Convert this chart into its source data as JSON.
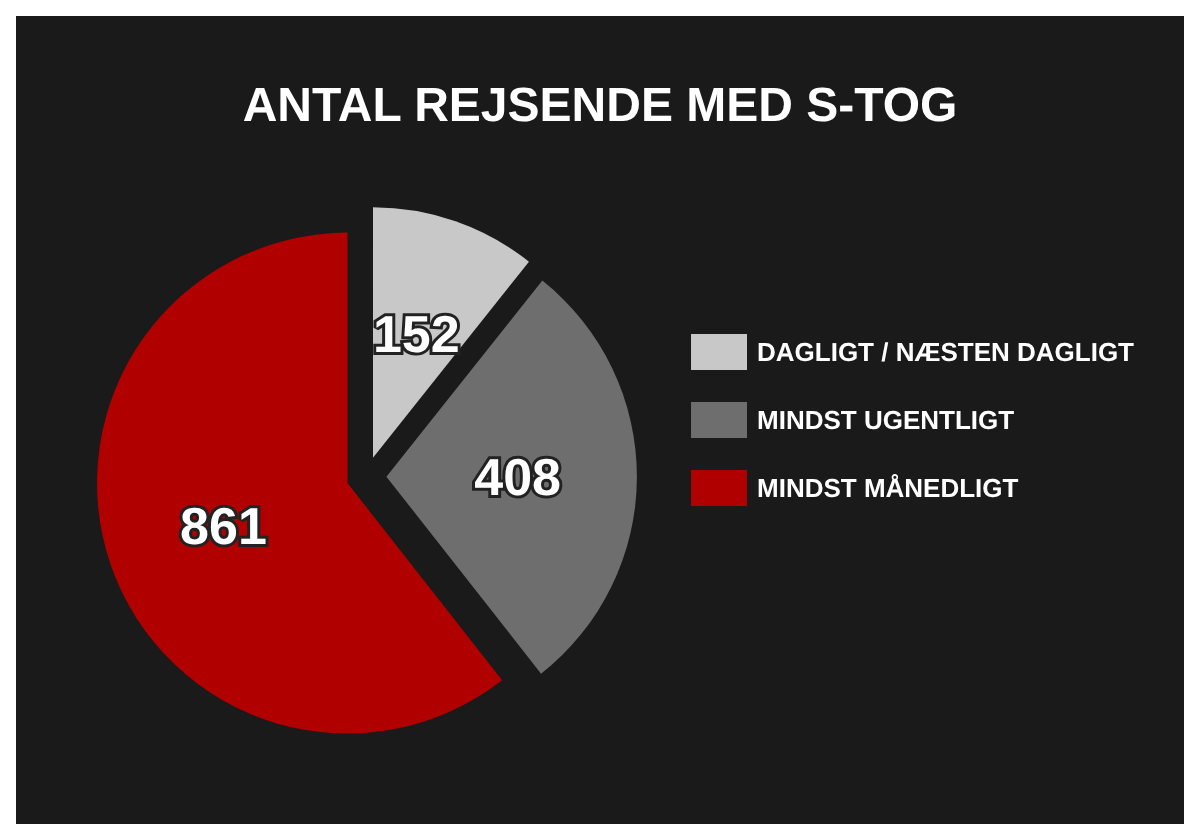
{
  "chart_data": {
    "type": "pie",
    "title": "ANTAL REJSENDE MED S-TOG",
    "categories": [
      "DAGLIGT / NÆSTEN DAGLIGT",
      "MINDST UGENTLIGT",
      "MINDST MÅNEDLIGT"
    ],
    "values": [
      152,
      408,
      861
    ],
    "colors": [
      "#c8c8c8",
      "#6e6e6e",
      "#b00000"
    ],
    "data_labels": true,
    "legend": "right"
  }
}
